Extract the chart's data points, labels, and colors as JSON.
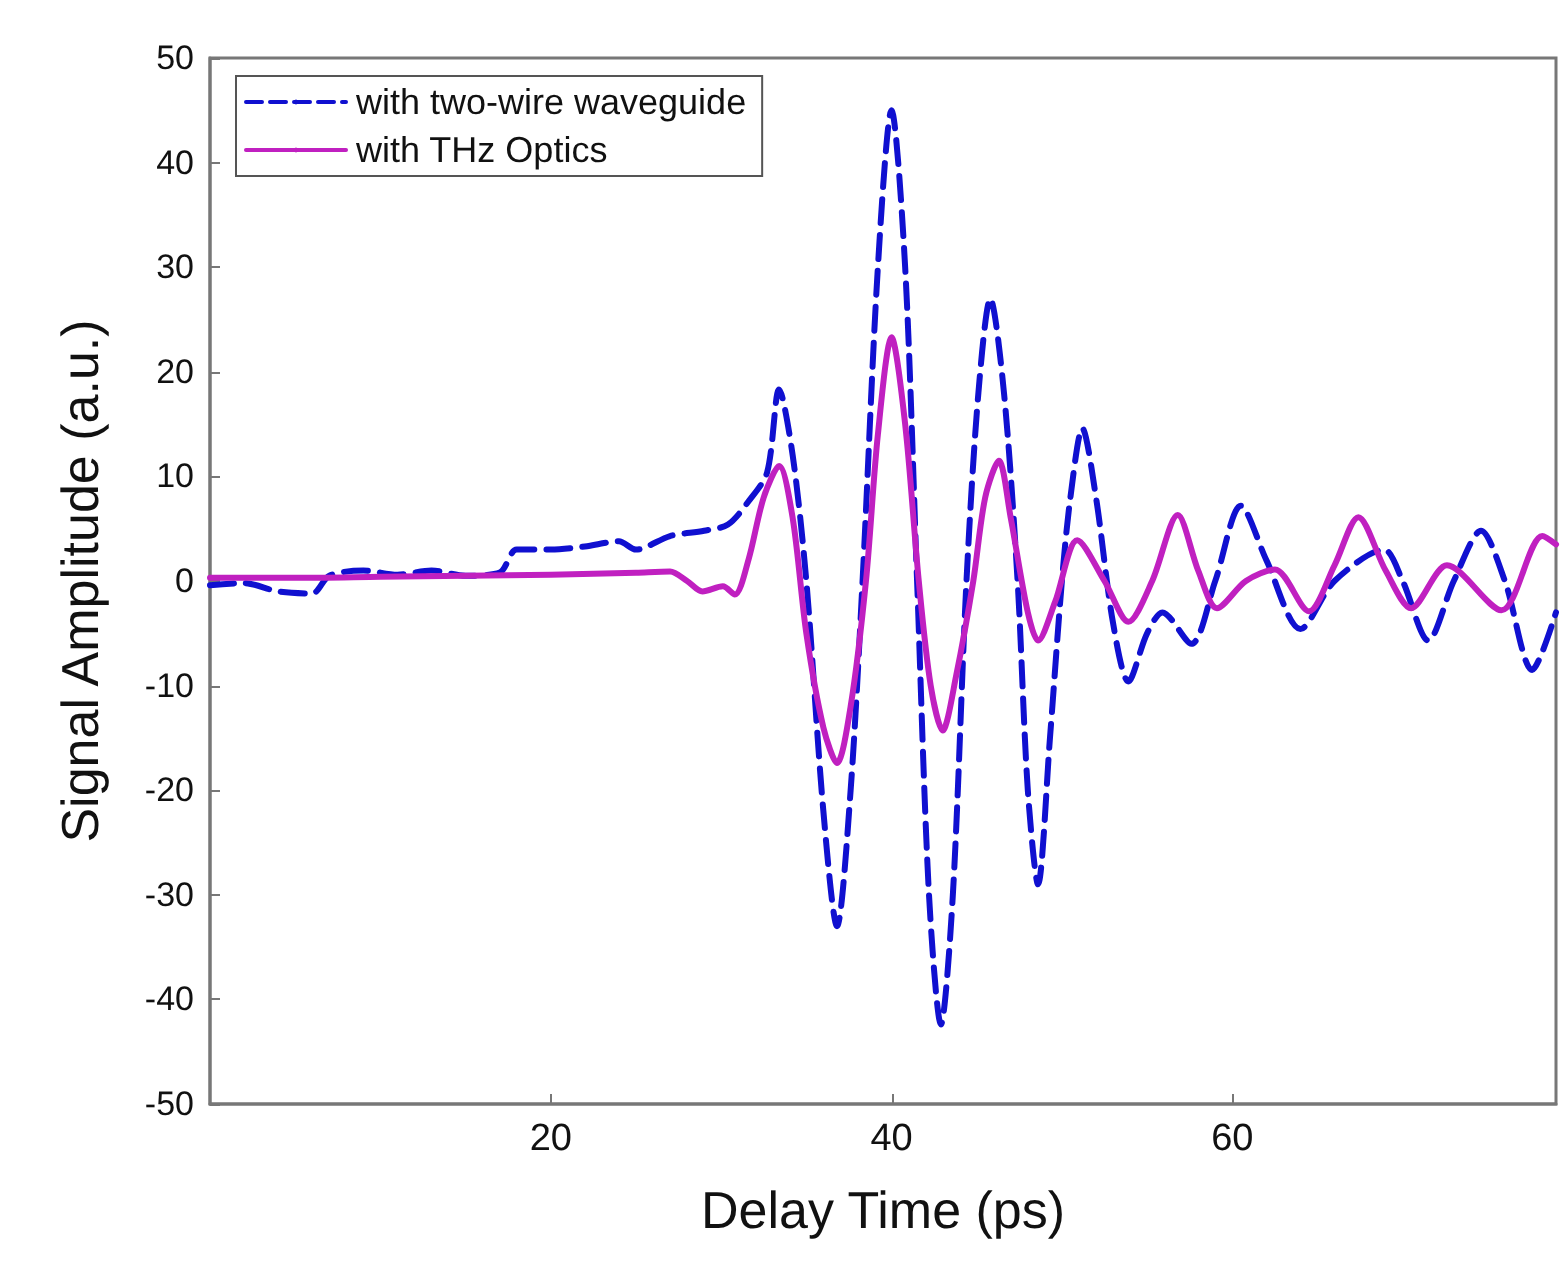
{
  "chart_data": {
    "type": "line",
    "xlabel": "Delay Time (ps)",
    "ylabel": "Signal Amplitude (a.u.)",
    "xlim": [
      0,
      79
    ],
    "xticks": [
      20,
      40,
      60
    ],
    "ylim": [
      -50,
      50
    ],
    "yticks": [
      -50,
      -40,
      -30,
      -20,
      -10,
      0,
      10,
      20,
      30,
      40,
      50
    ],
    "grid": false,
    "legend": "top left",
    "marker": "none",
    "series": [
      {
        "name": "with two-wire waveguide",
        "color": "#1010d0",
        "line_style": "dashed",
        "x": [
          0,
          2,
          4,
          6,
          7,
          9,
          11,
          13,
          15,
          17,
          18,
          20,
          22,
          24,
          25,
          27,
          29,
          30.4,
          31.6,
          32.7,
          33.4,
          34.2,
          35,
          36,
          36.8,
          37.6,
          38.3,
          39.2,
          40,
          40.8,
          41.5,
          42.2,
          42.9,
          43.6,
          44.4,
          45.1,
          45.8,
          46.6,
          47.4,
          48,
          48.6,
          49.3,
          50,
          50.5,
          51.2,
          52,
          53,
          53.9,
          55,
          55.9,
          57.6,
          59,
          60.5,
          62,
          64,
          66,
          68.9,
          70,
          71.5,
          73,
          74.6,
          76,
          77.6,
          79
        ],
        "values": [
          -0.4,
          -0.2,
          -1,
          -1.2,
          0.5,
          1,
          0.6,
          1,
          0.5,
          0.8,
          3,
          3,
          3.3,
          3.8,
          3,
          4.3,
          4.8,
          5.4,
          7.6,
          10.4,
          18.3,
          12,
          0,
          -22,
          -33,
          -20,
          0,
          30,
          45,
          30,
          0,
          -30,
          -42.4,
          -30,
          0,
          18,
          27,
          18,
          0,
          -20,
          -29,
          -15,
          0,
          8,
          14.6,
          8,
          -4,
          -9.6,
          -5,
          -3,
          -6,
          0,
          7.2,
          2,
          -4.6,
          0,
          3,
          0,
          -5.7,
          0,
          4.8,
          0,
          -8.5,
          -3
        ]
      },
      {
        "name": "with THz Optics",
        "color": "#c020c0",
        "line_style": "solid",
        "x": [
          0,
          5,
          10,
          15,
          20,
          25,
          27,
          28,
          28.9,
          30.1,
          30.8,
          31.6,
          32.5,
          33.4,
          34.2,
          35,
          36,
          36.8,
          37.6,
          38.5,
          39.2,
          40,
          40.8,
          41.6,
          42.3,
          43,
          43.8,
          44.8,
          45.5,
          46.3,
          47,
          48,
          48.6,
          49.6,
          50.9,
          52.5,
          53.9,
          55.3,
          56.8,
          58,
          59.1,
          60.8,
          62.5,
          64.5,
          66,
          67.4,
          69,
          70.5,
          72.6,
          75.8,
          78.2,
          79
        ],
        "values": [
          0.3,
          0.3,
          0.4,
          0.5,
          0.6,
          0.8,
          0.9,
          0,
          -1,
          -0.5,
          -1.3,
          2,
          8,
          11,
          6,
          -5,
          -14,
          -17.4,
          -12,
          0,
          14,
          23.3,
          15,
          0,
          -10,
          -14.3,
          -9,
          0,
          8,
          11.5,
          6,
          -3,
          -5.7,
          -2,
          3.9,
          0,
          -3.9,
          0,
          6.3,
          1,
          -2.6,
          0,
          1.1,
          -2.9,
          1.5,
          6.1,
          1,
          -2.6,
          1.5,
          -2.8,
          4.3,
          3.5
        ]
      }
    ]
  }
}
